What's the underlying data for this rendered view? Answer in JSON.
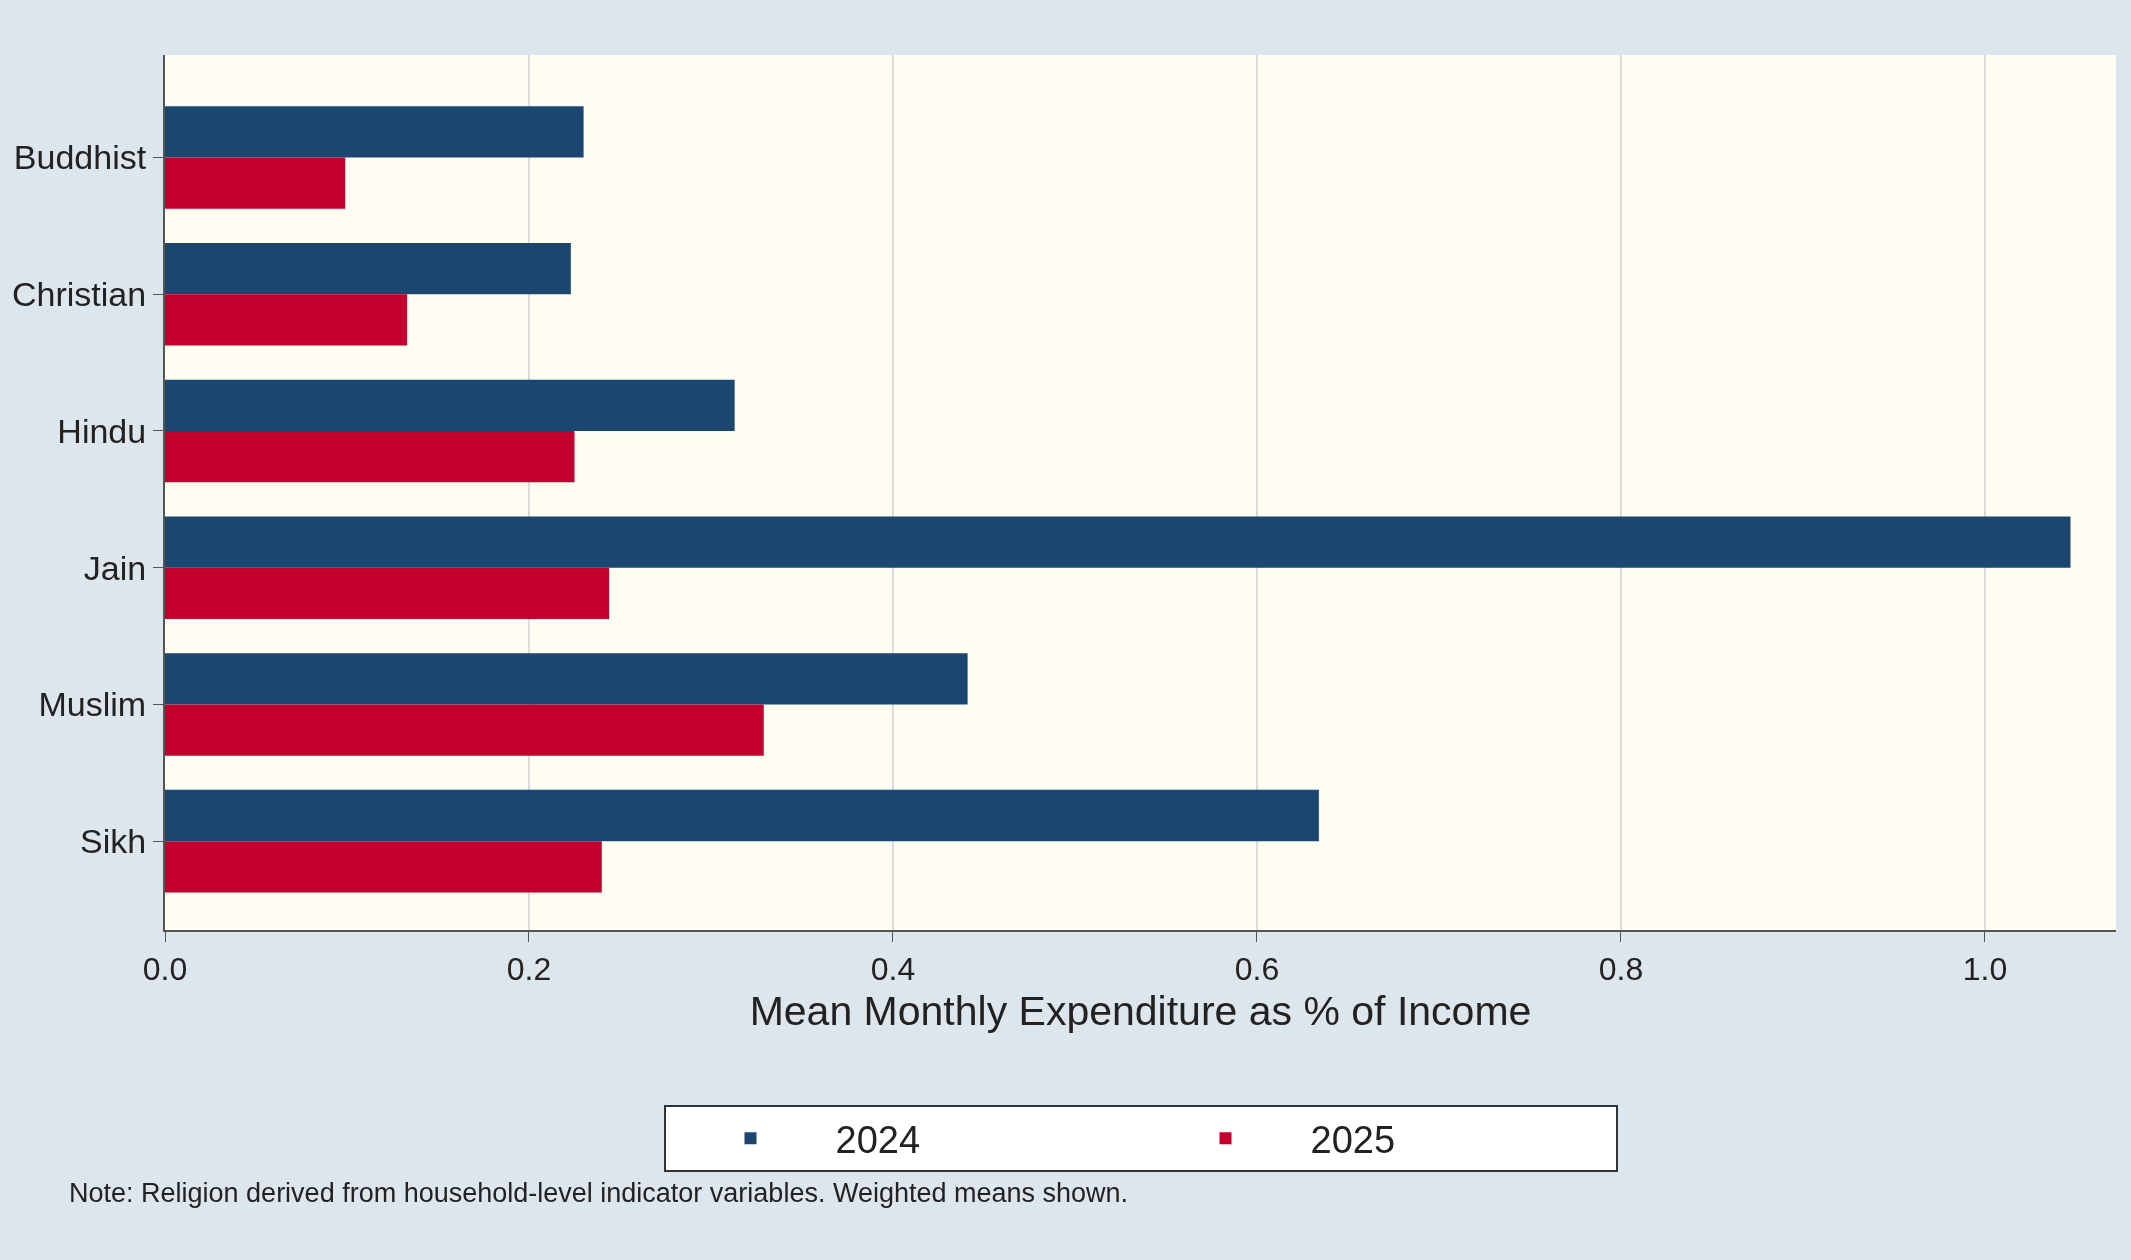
{
  "chart_data": {
    "type": "bar",
    "orientation": "horizontal",
    "categories": [
      "Buddhist",
      "Christian",
      "Hindu",
      "Jain",
      "Muslim",
      "Sikh"
    ],
    "series": [
      {
        "name": "2024",
        "color": "#1a4670",
        "values": [
          0.23,
          0.223,
          0.313,
          1.047,
          0.441,
          0.634
        ]
      },
      {
        "name": "2025",
        "color": "#c4002f",
        "values": [
          0.099,
          0.133,
          0.225,
          0.244,
          0.329,
          0.24
        ]
      }
    ],
    "xlabel": "Mean Monthly Expenditure as % of Income",
    "xlim": [
      0,
      1.072
    ],
    "xticks": [
      {
        "value": 0,
        "label": "0.0"
      },
      0.2,
      0.4,
      0.6,
      0.8,
      {
        "value": 1,
        "label": "1.0"
      }
    ],
    "grid": "x",
    "legend": "bottom",
    "annotations": [
      "Note: Religion derived from household-level indicator variables. Weighted means shown."
    ]
  }
}
